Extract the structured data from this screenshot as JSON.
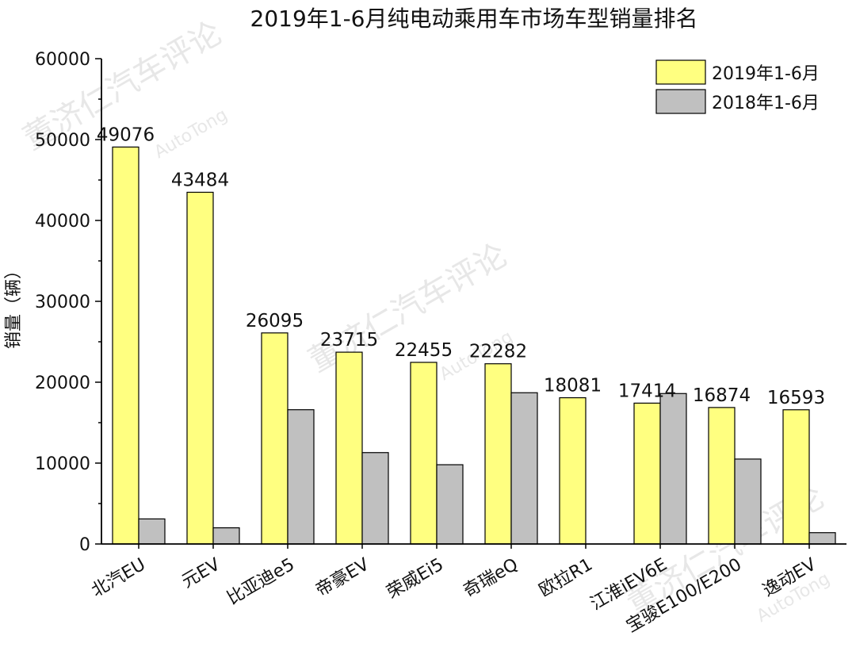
{
  "chart_data": {
    "type": "bar",
    "title": "2019年1-6月纯电动乘用车市场车型销量排名",
    "ylabel": "销量（辆）",
    "xlabel": "",
    "ylim": [
      0,
      60000
    ],
    "yticks": [
      0,
      10000,
      20000,
      30000,
      40000,
      50000,
      60000
    ],
    "legend_position": "top-right",
    "categories": [
      "北汽EU",
      "元EV",
      "比亚迪e5",
      "帝豪EV",
      "荣威Ei5",
      "奇瑞eQ",
      "欧拉R1",
      "江淮iEV6E",
      "宝骏E100/E200",
      "逸动EV"
    ],
    "series": [
      {
        "name": "2019年1-6月",
        "color": "#ffff80",
        "values": [
          49076,
          43484,
          26095,
          23715,
          22455,
          22282,
          18081,
          17414,
          16874,
          16593
        ],
        "labels": [
          "49076",
          "43484",
          "26095",
          "23715",
          "22455",
          "22282",
          "18081",
          "17414",
          "16874",
          "16593"
        ]
      },
      {
        "name": "2018年1-6月",
        "color": "#c0c0c0",
        "values": [
          3100,
          2000,
          16600,
          11300,
          9800,
          18700,
          0,
          18600,
          10500,
          1400
        ]
      }
    ]
  },
  "watermark": {
    "text": "董济仁汽车评论",
    "sub": "AutoTong"
  }
}
